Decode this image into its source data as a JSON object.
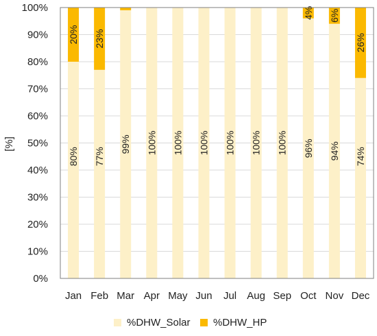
{
  "chart_data": {
    "type": "bar",
    "stacked": true,
    "categories": [
      "Jan",
      "Feb",
      "Mar",
      "Apr",
      "May",
      "Jun",
      "Jul",
      "Aug",
      "Sep",
      "Oct",
      "Nov",
      "Dec"
    ],
    "series": [
      {
        "name": "%DHW_Solar",
        "color": "#fdf0c8",
        "values": [
          80,
          77,
          99,
          100,
          100,
          100,
          100,
          100,
          100,
          96,
          94,
          74
        ],
        "labels": [
          "80%",
          "77%",
          "99%",
          "100%",
          "100%",
          "100%",
          "100%",
          "100%",
          "100%",
          "96%",
          "94%",
          "74%"
        ]
      },
      {
        "name": "%DHW_HP",
        "color": "#fbb900",
        "values": [
          20,
          23,
          1,
          0,
          0,
          0,
          0,
          0,
          0,
          4,
          6,
          26
        ],
        "labels": [
          "20%",
          "23%",
          "",
          "",
          "",
          "",
          "",
          "",
          "",
          "4%",
          "6%",
          "26%"
        ]
      }
    ],
    "title": "",
    "xlabel": "",
    "ylabel": "[%]",
    "ylim": [
      0,
      100
    ],
    "ytick_labels": [
      "0%",
      "10%",
      "20%",
      "30%",
      "40%",
      "50%",
      "60%",
      "70%",
      "80%",
      "90%",
      "100%"
    ],
    "grid": true,
    "grid_color": "#d9d9d9",
    "legend_position": "bottom"
  }
}
